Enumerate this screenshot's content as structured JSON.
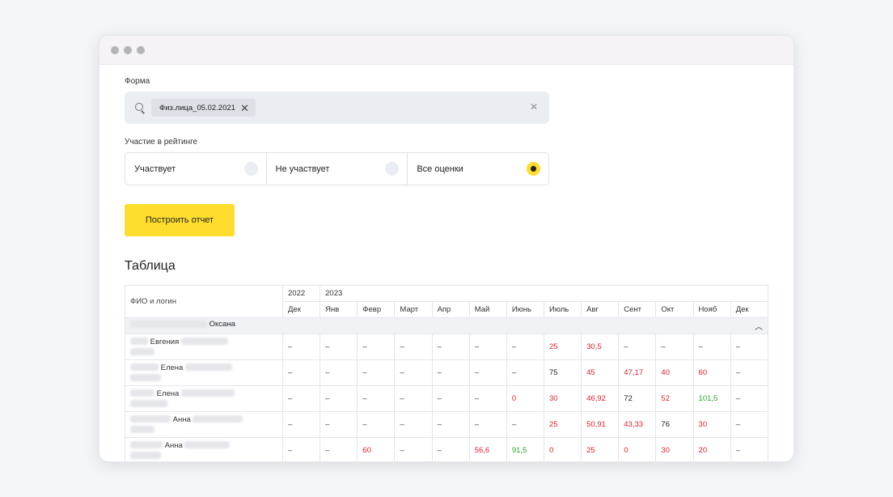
{
  "form": {
    "label": "Форма",
    "chip": "Физ.лица_05.02.2021"
  },
  "rating": {
    "label": "Участие в рейтинге",
    "options": [
      "Участвует",
      "Не участвует",
      "Все оценки"
    ],
    "selected_index": 2
  },
  "build_button": "Построить отчет",
  "section_title": "Таблица",
  "table": {
    "name_header": "ФИО и логин",
    "years": [
      "2022",
      "2023"
    ],
    "months": [
      "Дек",
      "Янв",
      "Февр",
      "Март",
      "Апр",
      "Май",
      "Июнь",
      "Июль",
      "Авг",
      "Сент",
      "Окт",
      "Нояб",
      "Дек"
    ],
    "group_name": "Оксана",
    "rows": [
      {
        "name": "Евгения",
        "values": [
          "–",
          "–",
          "–",
          "–",
          "–",
          "–",
          "–",
          "25",
          "30,5",
          "–",
          "–",
          "–",
          "–"
        ],
        "colors": [
          "",
          "",
          "",
          "",
          "",
          "",
          "",
          "red",
          "red",
          "",
          "",
          "",
          ""
        ]
      },
      {
        "name": "Елена",
        "values": [
          "–",
          "–",
          "–",
          "–",
          "–",
          "–",
          "–",
          "75",
          "45",
          "47,17",
          "40",
          "60",
          "–"
        ],
        "colors": [
          "",
          "",
          "",
          "",
          "",
          "",
          "",
          "dark",
          "red",
          "red",
          "red",
          "red",
          ""
        ]
      },
      {
        "name": "Елена",
        "values": [
          "–",
          "–",
          "–",
          "–",
          "–",
          "–",
          "0",
          "30",
          "46,92",
          "72",
          "52",
          "101,5",
          "–"
        ],
        "colors": [
          "",
          "",
          "",
          "",
          "",
          "",
          "red",
          "red",
          "red",
          "dark",
          "red",
          "green",
          ""
        ]
      },
      {
        "name": "Анна",
        "values": [
          "–",
          "–",
          "–",
          "–",
          "–",
          "–",
          "–",
          "25",
          "50,91",
          "43,33",
          "76",
          "30",
          "–"
        ],
        "colors": [
          "",
          "",
          "",
          "",
          "",
          "",
          "",
          "red",
          "red",
          "red",
          "dark",
          "red",
          ""
        ]
      },
      {
        "name": "Анна",
        "values": [
          "–",
          "–",
          "60",
          "–",
          "–",
          "56,6",
          "91,5",
          "0",
          "25",
          "0",
          "30",
          "20",
          "–"
        ],
        "colors": [
          "",
          "",
          "red",
          "",
          "",
          "red",
          "green",
          "red",
          "red",
          "red",
          "red",
          "red",
          ""
        ]
      }
    ]
  }
}
